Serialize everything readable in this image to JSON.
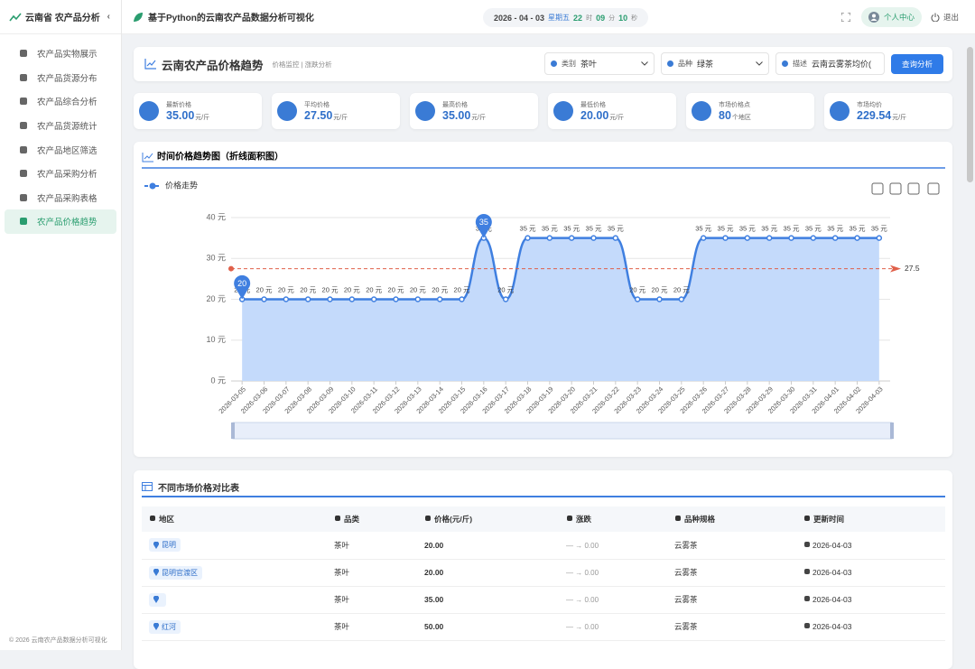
{
  "sidebar": {
    "brand": "云南省 农产品分析",
    "menu": [
      "农产品实物展示",
      "农产品货源分布",
      "农产品综合分析",
      "农产品货源统计",
      "农产品地区筛选",
      "农产品采购分析",
      "农产品采购表格",
      "农产品价格趋势"
    ],
    "active": 7,
    "footer": "© 2026 云南农产品数据分析可视化"
  },
  "header": {
    "title": "基于Python的云南农产品数据分析可视化",
    "date": "2026 - 04 - 03",
    "weekday": "星期五",
    "time": [
      [
        "22",
        "时"
      ],
      [
        "09",
        "分"
      ],
      [
        "10",
        "秒"
      ]
    ],
    "user": "个人中心",
    "logout": "退出"
  },
  "page": {
    "title": "云南农产品价格趋势",
    "subtitle": "价格监控 | 涨跌分析",
    "filters": [
      {
        "label": "类别",
        "value": "茶叶"
      },
      {
        "label": "品种",
        "value": "绿茶"
      },
      {
        "label": "描述",
        "value": "云南云雾茶均价("
      }
    ],
    "button": "查询分析"
  },
  "stats": [
    {
      "label": "最新价格",
      "value": "35.00",
      "unit": "元/斤"
    },
    {
      "label": "平均价格",
      "value": "27.50",
      "unit": "元/斤"
    },
    {
      "label": "最高价格",
      "value": "35.00",
      "unit": "元/斤"
    },
    {
      "label": "最低价格",
      "value": "20.00",
      "unit": "元/斤"
    },
    {
      "label": "市场价格点",
      "value": "80",
      "unit": "个地区"
    },
    {
      "label": "市场均价",
      "value": "229.54",
      "unit": "元/斤"
    }
  ],
  "chart_data": {
    "type": "line",
    "title": "时间价格趋势图（折线面积图）",
    "categories": [
      "2026-03-05",
      "2026-03-06",
      "2026-03-07",
      "2026-03-08",
      "2026-03-09",
      "2026-03-10",
      "2026-03-11",
      "2026-03-12",
      "2026-03-13",
      "2026-03-14",
      "2026-03-15",
      "2026-03-16",
      "2026-03-17",
      "2026-03-18",
      "2026-03-19",
      "2026-03-20",
      "2026-03-21",
      "2026-03-22",
      "2026-03-23",
      "2026-03-24",
      "2026-03-25",
      "2026-03-26",
      "2026-03-27",
      "2026-03-28",
      "2026-03-29",
      "2026-03-30",
      "2026-03-31",
      "2026-04-01",
      "2026-04-02",
      "2026-04-03"
    ],
    "series": [
      {
        "name": "价格走势",
        "color": "#3f7fe0",
        "area_color": "#c4dafb",
        "values": [
          20,
          20,
          20,
          20,
          20,
          20,
          20,
          20,
          20,
          20,
          20,
          35,
          20,
          35,
          35,
          35,
          35,
          35,
          20,
          20,
          20,
          35,
          35,
          35,
          35,
          35,
          35,
          35,
          35,
          35
        ],
        "value_labels": [
          "20 元",
          "20 元",
          "20 元",
          "20 元",
          "20 元",
          "20 元",
          "20 元",
          "20 元",
          "20 元",
          "20 元",
          "20 元",
          "35 元",
          "20 元",
          "35 元",
          "35 元",
          "35 元",
          "35 元",
          "35 元",
          "20 元",
          "20 元",
          "20 元",
          "35 元",
          "35 元",
          "35 元",
          "35 元",
          "35 元",
          "35 元",
          "35 元",
          "35 元",
          "35 元"
        ]
      }
    ],
    "ylim": [
      0,
      40
    ],
    "yticks": [
      {
        "value": 0,
        "label": "0 元"
      },
      {
        "value": 10,
        "label": "10 元"
      },
      {
        "value": 20,
        "label": "20 元"
      },
      {
        "value": 30,
        "label": "30 元"
      },
      {
        "value": 40,
        "label": "40 元"
      }
    ],
    "grid": true,
    "mark_points": [
      {
        "x": "2026-03-05",
        "value": 20
      },
      {
        "x": "2026-03-16",
        "value": 35
      }
    ],
    "mark_line": {
      "value": 27.5,
      "color": "#e0604a"
    }
  },
  "table": {
    "title": "不同市场价格对比表",
    "headers": [
      "地区",
      "品类",
      "价格(元/斤)",
      "涨跌",
      "品种规格",
      "更新时间"
    ],
    "rows": [
      [
        "昆明",
        "茶叶",
        "20.00",
        "— → 0.00",
        "云雾茶",
        "2026-04-03"
      ],
      [
        "昆明官渡区",
        "茶叶",
        "20.00",
        "— → 0.00",
        "云雾茶",
        "2026-04-03"
      ],
      [
        null,
        "茶叶",
        "35.00",
        "— → 0.00",
        "云雾茶",
        "2026-04-03"
      ],
      [
        "红河",
        "茶叶",
        "50.00",
        "— → 0.00",
        "云雾茶",
        "2026-04-03"
      ]
    ]
  }
}
